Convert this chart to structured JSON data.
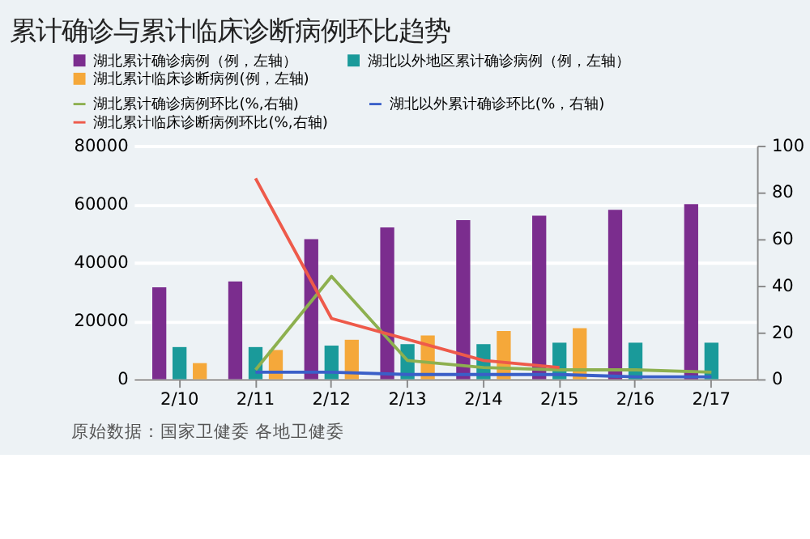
{
  "chart_data": {
    "type": "bar",
    "title": "累计确诊与累计临床诊断病例环比趋势",
    "categories": [
      "2/10",
      "2/11",
      "2/12",
      "2/13",
      "2/14",
      "2/15",
      "2/16",
      "2/17"
    ],
    "series": [
      {
        "name": "湖北累计确诊病例（例，左轴）",
        "color": "#7b2d8e",
        "values": [
          31500,
          33500,
          48000,
          52000,
          54500,
          56000,
          58000,
          60000
        ]
      },
      {
        "name": "湖北以外地区累计确诊病例（例，左轴）",
        "color": "#1a9a9a",
        "values": [
          11000,
          11000,
          11500,
          12000,
          12000,
          12500,
          12500,
          12500
        ]
      },
      {
        "name": "湖北累计临床诊断病例(例，左轴)",
        "color": "#f5a83a",
        "values": [
          5500,
          10000,
          13500,
          15000,
          16500,
          17500,
          null,
          null
        ]
      },
      {
        "name": "湖北累计确诊病例环比(%,右轴)",
        "type": "line",
        "axis": "y2",
        "color": "#8db04f",
        "values": [
          null,
          4,
          44,
          8,
          5,
          4,
          4,
          3
        ]
      },
      {
        "name": "湖北以外累计确诊环比(%，右轴)",
        "type": "line",
        "axis": "y2",
        "color": "#3a5fc8",
        "values": [
          null,
          3,
          3,
          2,
          2,
          2,
          1,
          1
        ]
      },
      {
        "name": "湖北累计临床诊断病例环比(%,右轴)",
        "type": "line",
        "axis": "y2",
        "color": "#ee5a4a",
        "values": [
          null,
          86,
          26,
          17,
          8,
          5,
          null,
          null
        ]
      }
    ],
    "ylim": [
      0,
      80000
    ],
    "yticks": [
      0,
      20000,
      40000,
      60000,
      80000
    ],
    "y2lim": [
      0,
      100
    ],
    "y2ticks": [
      0,
      20,
      40,
      60,
      80,
      100
    ],
    "grid": "y",
    "legend": "top",
    "line_style": "solid",
    "marker": "none",
    "annotations": [
      "原始数据：国家卫健委 各地卫健委"
    ]
  }
}
